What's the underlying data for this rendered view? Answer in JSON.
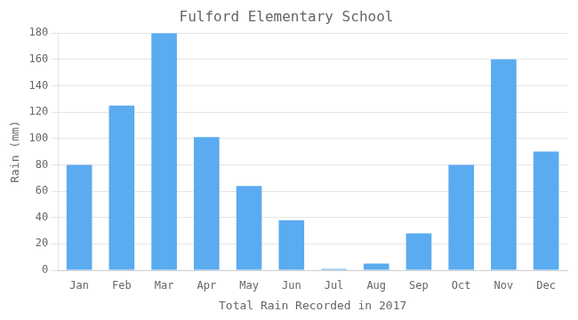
{
  "chart_data": {
    "type": "bar",
    "title": "Fulford Elementary School",
    "xlabel": "Total Rain Recorded in 2017",
    "ylabel": "Rain (mm)",
    "categories": [
      "Jan",
      "Feb",
      "Mar",
      "Apr",
      "May",
      "Jun",
      "Jul",
      "Aug",
      "Sep",
      "Oct",
      "Nov",
      "Dec"
    ],
    "values": [
      80,
      125,
      180,
      101,
      64,
      38,
      1,
      5,
      28,
      80,
      160,
      90
    ],
    "color": "#5aabf0",
    "ylim": [
      0,
      180
    ],
    "yticks": [
      0,
      20,
      40,
      60,
      80,
      100,
      120,
      140,
      160,
      180
    ],
    "grid": true
  }
}
